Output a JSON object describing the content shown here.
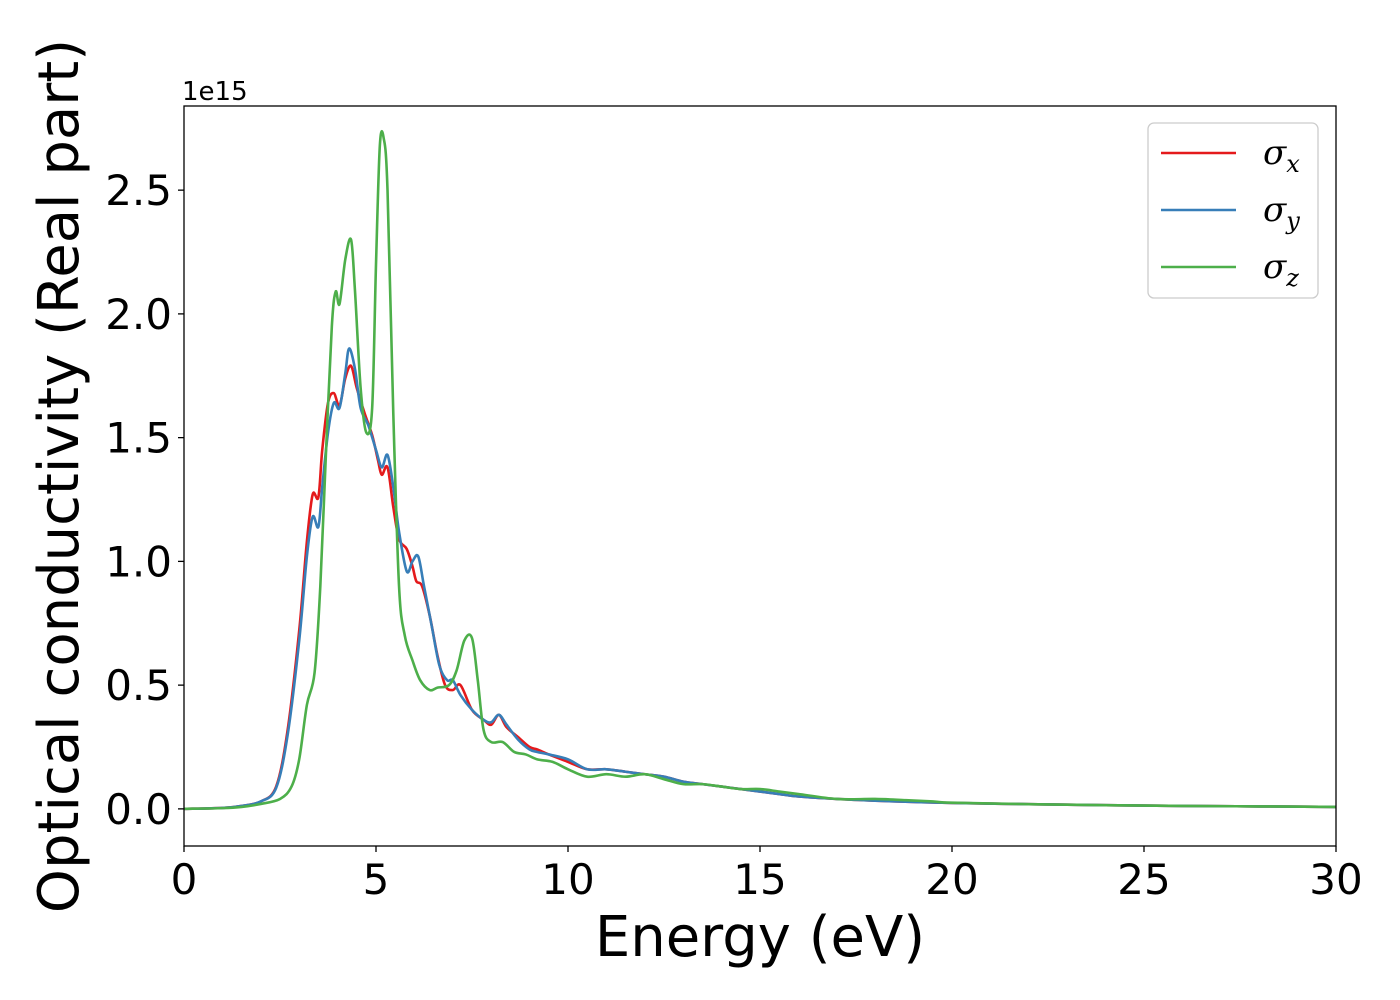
{
  "chart_data": {
    "type": "line",
    "xlabel": "Energy (eV)",
    "ylabel": "Optical conductivity (Real part)",
    "y_offset_label": "1e15",
    "xlim": [
      0,
      30
    ],
    "ylim": [
      -0.15,
      2.84
    ],
    "y_scale_factor": 1000000000000000.0,
    "grid": false,
    "legend_position": "top-right",
    "x_ticks": [
      0,
      5,
      10,
      15,
      20,
      25,
      30
    ],
    "x_tick_labels": [
      "0",
      "5",
      "10",
      "15",
      "20",
      "25",
      "30"
    ],
    "y_ticks": [
      0.0,
      0.5,
      1.0,
      1.5,
      2.0,
      2.5
    ],
    "y_tick_labels": [
      "0.0",
      "0.5",
      "1.0",
      "1.5",
      "2.0",
      "2.5"
    ],
    "series": [
      {
        "name": "σx",
        "label_base": "σ",
        "label_sub": "x",
        "color": "#e41a1c",
        "x": [
          0,
          1,
          1.5,
          2,
          2.4,
          2.7,
          3.0,
          3.2,
          3.35,
          3.5,
          3.6,
          3.75,
          3.9,
          4.05,
          4.2,
          4.35,
          4.5,
          4.7,
          4.9,
          5.05,
          5.15,
          5.3,
          5.45,
          5.6,
          5.8,
          5.95,
          6.05,
          6.2,
          6.4,
          6.6,
          6.8,
          7.0,
          7.2,
          7.5,
          7.8,
          8.0,
          8.2,
          8.4,
          8.7,
          9.0,
          9.2,
          9.5,
          10.0,
          10.5,
          11.0,
          11.5,
          12.0,
          12.5,
          13.0,
          13.5,
          14.0,
          14.5,
          15.0,
          15.5,
          16.0,
          17.0,
          18.0,
          19.0,
          20.0,
          22.0,
          24.0,
          26.0,
          28.0,
          30.0
        ],
        "values": [
          0.0,
          0.004,
          0.012,
          0.03,
          0.09,
          0.32,
          0.72,
          1.08,
          1.27,
          1.26,
          1.45,
          1.64,
          1.68,
          1.63,
          1.74,
          1.79,
          1.7,
          1.6,
          1.51,
          1.41,
          1.35,
          1.38,
          1.22,
          1.09,
          1.05,
          0.98,
          0.92,
          0.9,
          0.78,
          0.62,
          0.5,
          0.48,
          0.5,
          0.4,
          0.36,
          0.34,
          0.38,
          0.33,
          0.29,
          0.25,
          0.24,
          0.22,
          0.19,
          0.16,
          0.16,
          0.15,
          0.14,
          0.13,
          0.11,
          0.1,
          0.09,
          0.08,
          0.07,
          0.06,
          0.05,
          0.04,
          0.033,
          0.028,
          0.024,
          0.019,
          0.015,
          0.012,
          0.01,
          0.008
        ]
      },
      {
        "name": "σy",
        "label_base": "σ",
        "label_sub": "y",
        "color": "#377eb8",
        "x": [
          0,
          1,
          1.5,
          2,
          2.4,
          2.7,
          3.0,
          3.2,
          3.35,
          3.5,
          3.6,
          3.75,
          3.9,
          4.05,
          4.2,
          4.3,
          4.45,
          4.6,
          4.8,
          5.0,
          5.15,
          5.3,
          5.45,
          5.6,
          5.8,
          5.95,
          6.1,
          6.25,
          6.45,
          6.65,
          6.85,
          7.0,
          7.2,
          7.5,
          7.8,
          8.0,
          8.2,
          8.4,
          8.7,
          9.0,
          9.2,
          9.5,
          10.0,
          10.5,
          11.0,
          11.5,
          12.0,
          12.5,
          13.0,
          13.5,
          14.0,
          14.5,
          15.0,
          15.5,
          16.0,
          17.0,
          18.0,
          19.0,
          20.0,
          22.0,
          24.0,
          26.0,
          28.0,
          30.0
        ],
        "values": [
          0.0,
          0.004,
          0.012,
          0.03,
          0.085,
          0.3,
          0.68,
          1.02,
          1.18,
          1.14,
          1.3,
          1.52,
          1.64,
          1.62,
          1.76,
          1.86,
          1.78,
          1.62,
          1.55,
          1.45,
          1.38,
          1.43,
          1.3,
          1.12,
          0.96,
          1.0,
          1.02,
          0.9,
          0.74,
          0.58,
          0.52,
          0.52,
          0.46,
          0.4,
          0.36,
          0.35,
          0.38,
          0.34,
          0.28,
          0.24,
          0.23,
          0.22,
          0.2,
          0.16,
          0.16,
          0.15,
          0.14,
          0.13,
          0.11,
          0.1,
          0.09,
          0.08,
          0.07,
          0.06,
          0.05,
          0.04,
          0.033,
          0.028,
          0.024,
          0.019,
          0.015,
          0.012,
          0.01,
          0.008
        ]
      },
      {
        "name": "σz",
        "label_base": "σ",
        "label_sub": "z",
        "color": "#4daf4a",
        "x": [
          0,
          1,
          1.5,
          2,
          2.5,
          2.8,
          3.0,
          3.2,
          3.4,
          3.55,
          3.7,
          3.85,
          3.95,
          4.05,
          4.2,
          4.35,
          4.45,
          4.6,
          4.75,
          4.9,
          5.0,
          5.1,
          5.2,
          5.3,
          5.45,
          5.6,
          5.75,
          5.95,
          6.15,
          6.4,
          6.6,
          6.9,
          7.1,
          7.3,
          7.5,
          7.65,
          7.8,
          8.0,
          8.3,
          8.6,
          8.9,
          9.2,
          9.6,
          10.0,
          10.5,
          11.0,
          11.5,
          12.0,
          12.5,
          13.0,
          13.5,
          14.0,
          14.5,
          15.0,
          15.5,
          16.0,
          17.0,
          18.0,
          18.8,
          19.5,
          20.0,
          22.0,
          24.0,
          26.0,
          28.0,
          30.0
        ],
        "values": [
          0.0,
          0.003,
          0.008,
          0.02,
          0.04,
          0.09,
          0.2,
          0.42,
          0.55,
          0.9,
          1.45,
          1.95,
          2.09,
          2.04,
          2.22,
          2.3,
          2.1,
          1.7,
          1.52,
          1.62,
          2.2,
          2.68,
          2.71,
          2.5,
          1.6,
          0.9,
          0.7,
          0.6,
          0.52,
          0.48,
          0.49,
          0.5,
          0.56,
          0.68,
          0.69,
          0.52,
          0.32,
          0.27,
          0.27,
          0.23,
          0.22,
          0.2,
          0.19,
          0.16,
          0.13,
          0.14,
          0.13,
          0.14,
          0.12,
          0.1,
          0.1,
          0.09,
          0.08,
          0.08,
          0.07,
          0.06,
          0.04,
          0.04,
          0.035,
          0.03,
          0.025,
          0.019,
          0.015,
          0.012,
          0.01,
          0.008
        ]
      }
    ]
  }
}
